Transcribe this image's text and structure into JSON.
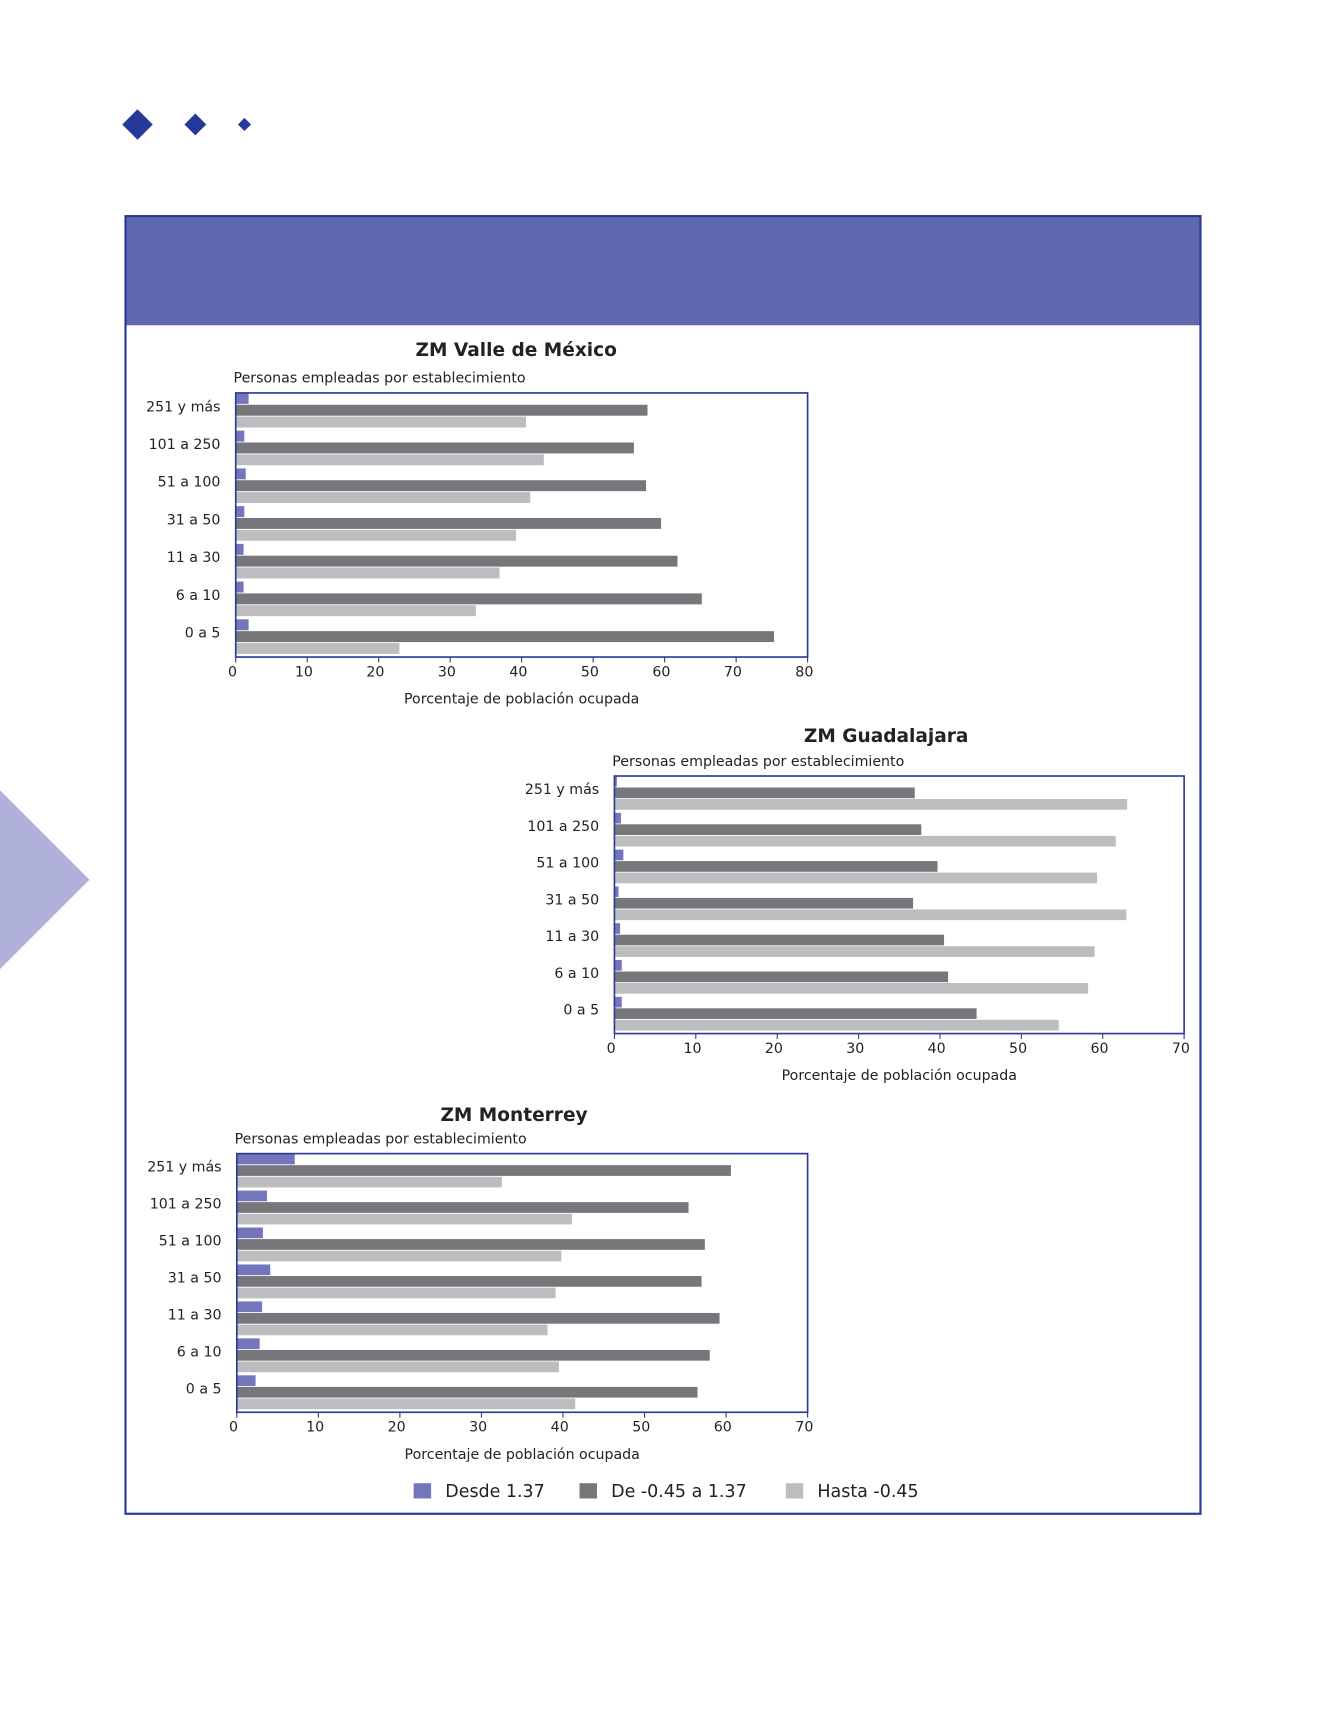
{
  "chart_data": [
    {
      "type": "hbar",
      "title": "ZM Valle de México",
      "subtitle": "Personas empleadas por establecimiento",
      "x_label": "Porcentaje de población ocupada",
      "categories": [
        "251 y más",
        "101 a 250",
        "51 a 100",
        "31 a 50",
        "11 a 30",
        "6 a 10",
        "0 a 5"
      ],
      "series": [
        {
          "name": "Desde 1.37",
          "color": "#7476bb",
          "values": [
            1.8,
            1.2,
            1.4,
            1.2,
            1.1,
            1.1,
            1.8
          ]
        },
        {
          "name": "De -0.45 a 1.37",
          "color": "#77777b",
          "values": [
            57.6,
            55.7,
            57.4,
            59.5,
            61.8,
            65.2,
            75.3
          ]
        },
        {
          "name": "Hasta -0.45",
          "color": "#bdbdbf",
          "values": [
            40.6,
            43.1,
            41.2,
            39.2,
            36.9,
            33.6,
            22.9
          ]
        }
      ],
      "xlim": [
        0,
        80
      ],
      "xticks": [
        0,
        10,
        20,
        30,
        40,
        50,
        60,
        70,
        80
      ]
    },
    {
      "type": "hbar",
      "title": "ZM Guadalajara",
      "subtitle": "Personas empleadas por establecimiento",
      "x_label": "Porcentaje de población ocupada",
      "categories": [
        "251 y más",
        "101 a 250",
        "51 a 100",
        "31 a 50",
        "11 a 30",
        "6 a 10",
        "0 a 5"
      ],
      "series": [
        {
          "name": "Desde 1.37",
          "color": "#7476bb",
          "values": [
            0.3,
            0.8,
            1.1,
            0.5,
            0.7,
            0.9,
            0.9
          ]
        },
        {
          "name": "De -0.45 a 1.37",
          "color": "#77777b",
          "values": [
            36.9,
            37.7,
            39.7,
            36.7,
            40.5,
            41.0,
            44.5
          ]
        },
        {
          "name": "Hasta -0.45",
          "color": "#bdbdbf",
          "values": [
            63.0,
            61.6,
            59.3,
            62.9,
            59.0,
            58.2,
            54.6
          ]
        }
      ],
      "xlim": [
        0,
        70
      ],
      "xticks": [
        0,
        10,
        20,
        30,
        40,
        50,
        60,
        70
      ]
    },
    {
      "type": "hbar",
      "title": "ZM Monterrey",
      "subtitle": "Personas empleadas por establecimiento",
      "x_label": "Porcentaje de población ocupada",
      "categories": [
        "251 y más",
        "101 a 250",
        "51 a 100",
        "31 a 50",
        "11 a 30",
        "6 a 10",
        "0 a 5"
      ],
      "series": [
        {
          "name": "Desde 1.37",
          "color": "#7476bb",
          "values": [
            7.1,
            3.7,
            3.2,
            4.1,
            3.1,
            2.8,
            2.3
          ]
        },
        {
          "name": "De -0.45 a 1.37",
          "color": "#77777b",
          "values": [
            60.6,
            55.4,
            57.4,
            57.0,
            59.2,
            58.0,
            56.5
          ]
        },
        {
          "name": "Hasta -0.45",
          "color": "#bdbdbf",
          "values": [
            32.5,
            41.1,
            39.8,
            39.1,
            38.1,
            39.5,
            41.5
          ]
        }
      ],
      "xlim": [
        0,
        70
      ],
      "xticks": [
        0,
        10,
        20,
        30,
        40,
        50,
        60,
        70
      ]
    }
  ]
}
